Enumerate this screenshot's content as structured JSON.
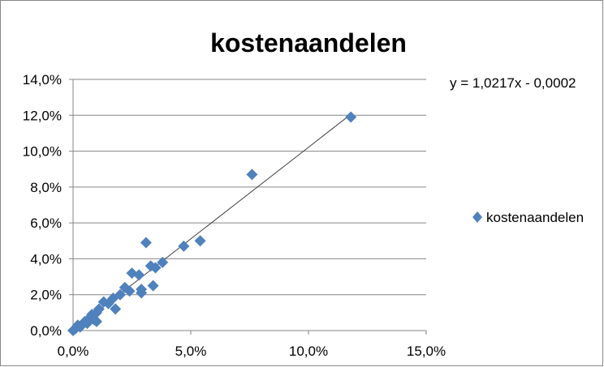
{
  "chart_data": {
    "type": "scatter",
    "title": "kostenaandelen",
    "xlabel": "",
    "ylabel": "",
    "xlim": [
      0,
      15
    ],
    "ylim": [
      0,
      14
    ],
    "x_ticks": [
      "0,0%",
      "5,0%",
      "10,0%",
      "15,0%"
    ],
    "y_ticks": [
      "0,0%",
      "2,0%",
      "4,0%",
      "6,0%",
      "8,0%",
      "10,0%",
      "12,0%",
      "14,0%"
    ],
    "grid": true,
    "legend_position": "right",
    "series": [
      {
        "name": "kostenaandelen",
        "color": "#4F81BD",
        "marker": "diamond",
        "points": [
          [
            0.0,
            0.0
          ],
          [
            0.1,
            0.1
          ],
          [
            0.2,
            0.3
          ],
          [
            0.3,
            0.2
          ],
          [
            0.5,
            0.5
          ],
          [
            0.6,
            0.4
          ],
          [
            0.7,
            0.7
          ],
          [
            0.8,
            0.9
          ],
          [
            0.9,
            0.6
          ],
          [
            1.0,
            1.0
          ],
          [
            1.0,
            0.5
          ],
          [
            1.1,
            1.2
          ],
          [
            1.3,
            1.6
          ],
          [
            1.5,
            1.5
          ],
          [
            1.7,
            1.8
          ],
          [
            1.8,
            1.2
          ],
          [
            2.0,
            2.0
          ],
          [
            2.2,
            2.4
          ],
          [
            2.4,
            2.2
          ],
          [
            2.5,
            3.2
          ],
          [
            2.8,
            3.1
          ],
          [
            2.9,
            2.1
          ],
          [
            2.9,
            2.3
          ],
          [
            3.1,
            4.9
          ],
          [
            3.3,
            3.6
          ],
          [
            3.4,
            2.5
          ],
          [
            3.5,
            3.5
          ],
          [
            3.8,
            3.8
          ],
          [
            4.7,
            4.7
          ],
          [
            5.4,
            5.0
          ],
          [
            7.6,
            8.7
          ],
          [
            11.8,
            11.9
          ]
        ]
      }
    ],
    "trendline": {
      "equation": "y = 1,0217x - 0,0002",
      "slope": 1.0217,
      "intercept": -0.0002,
      "x_range": [
        0.0,
        11.8
      ],
      "color": "#404040"
    }
  }
}
